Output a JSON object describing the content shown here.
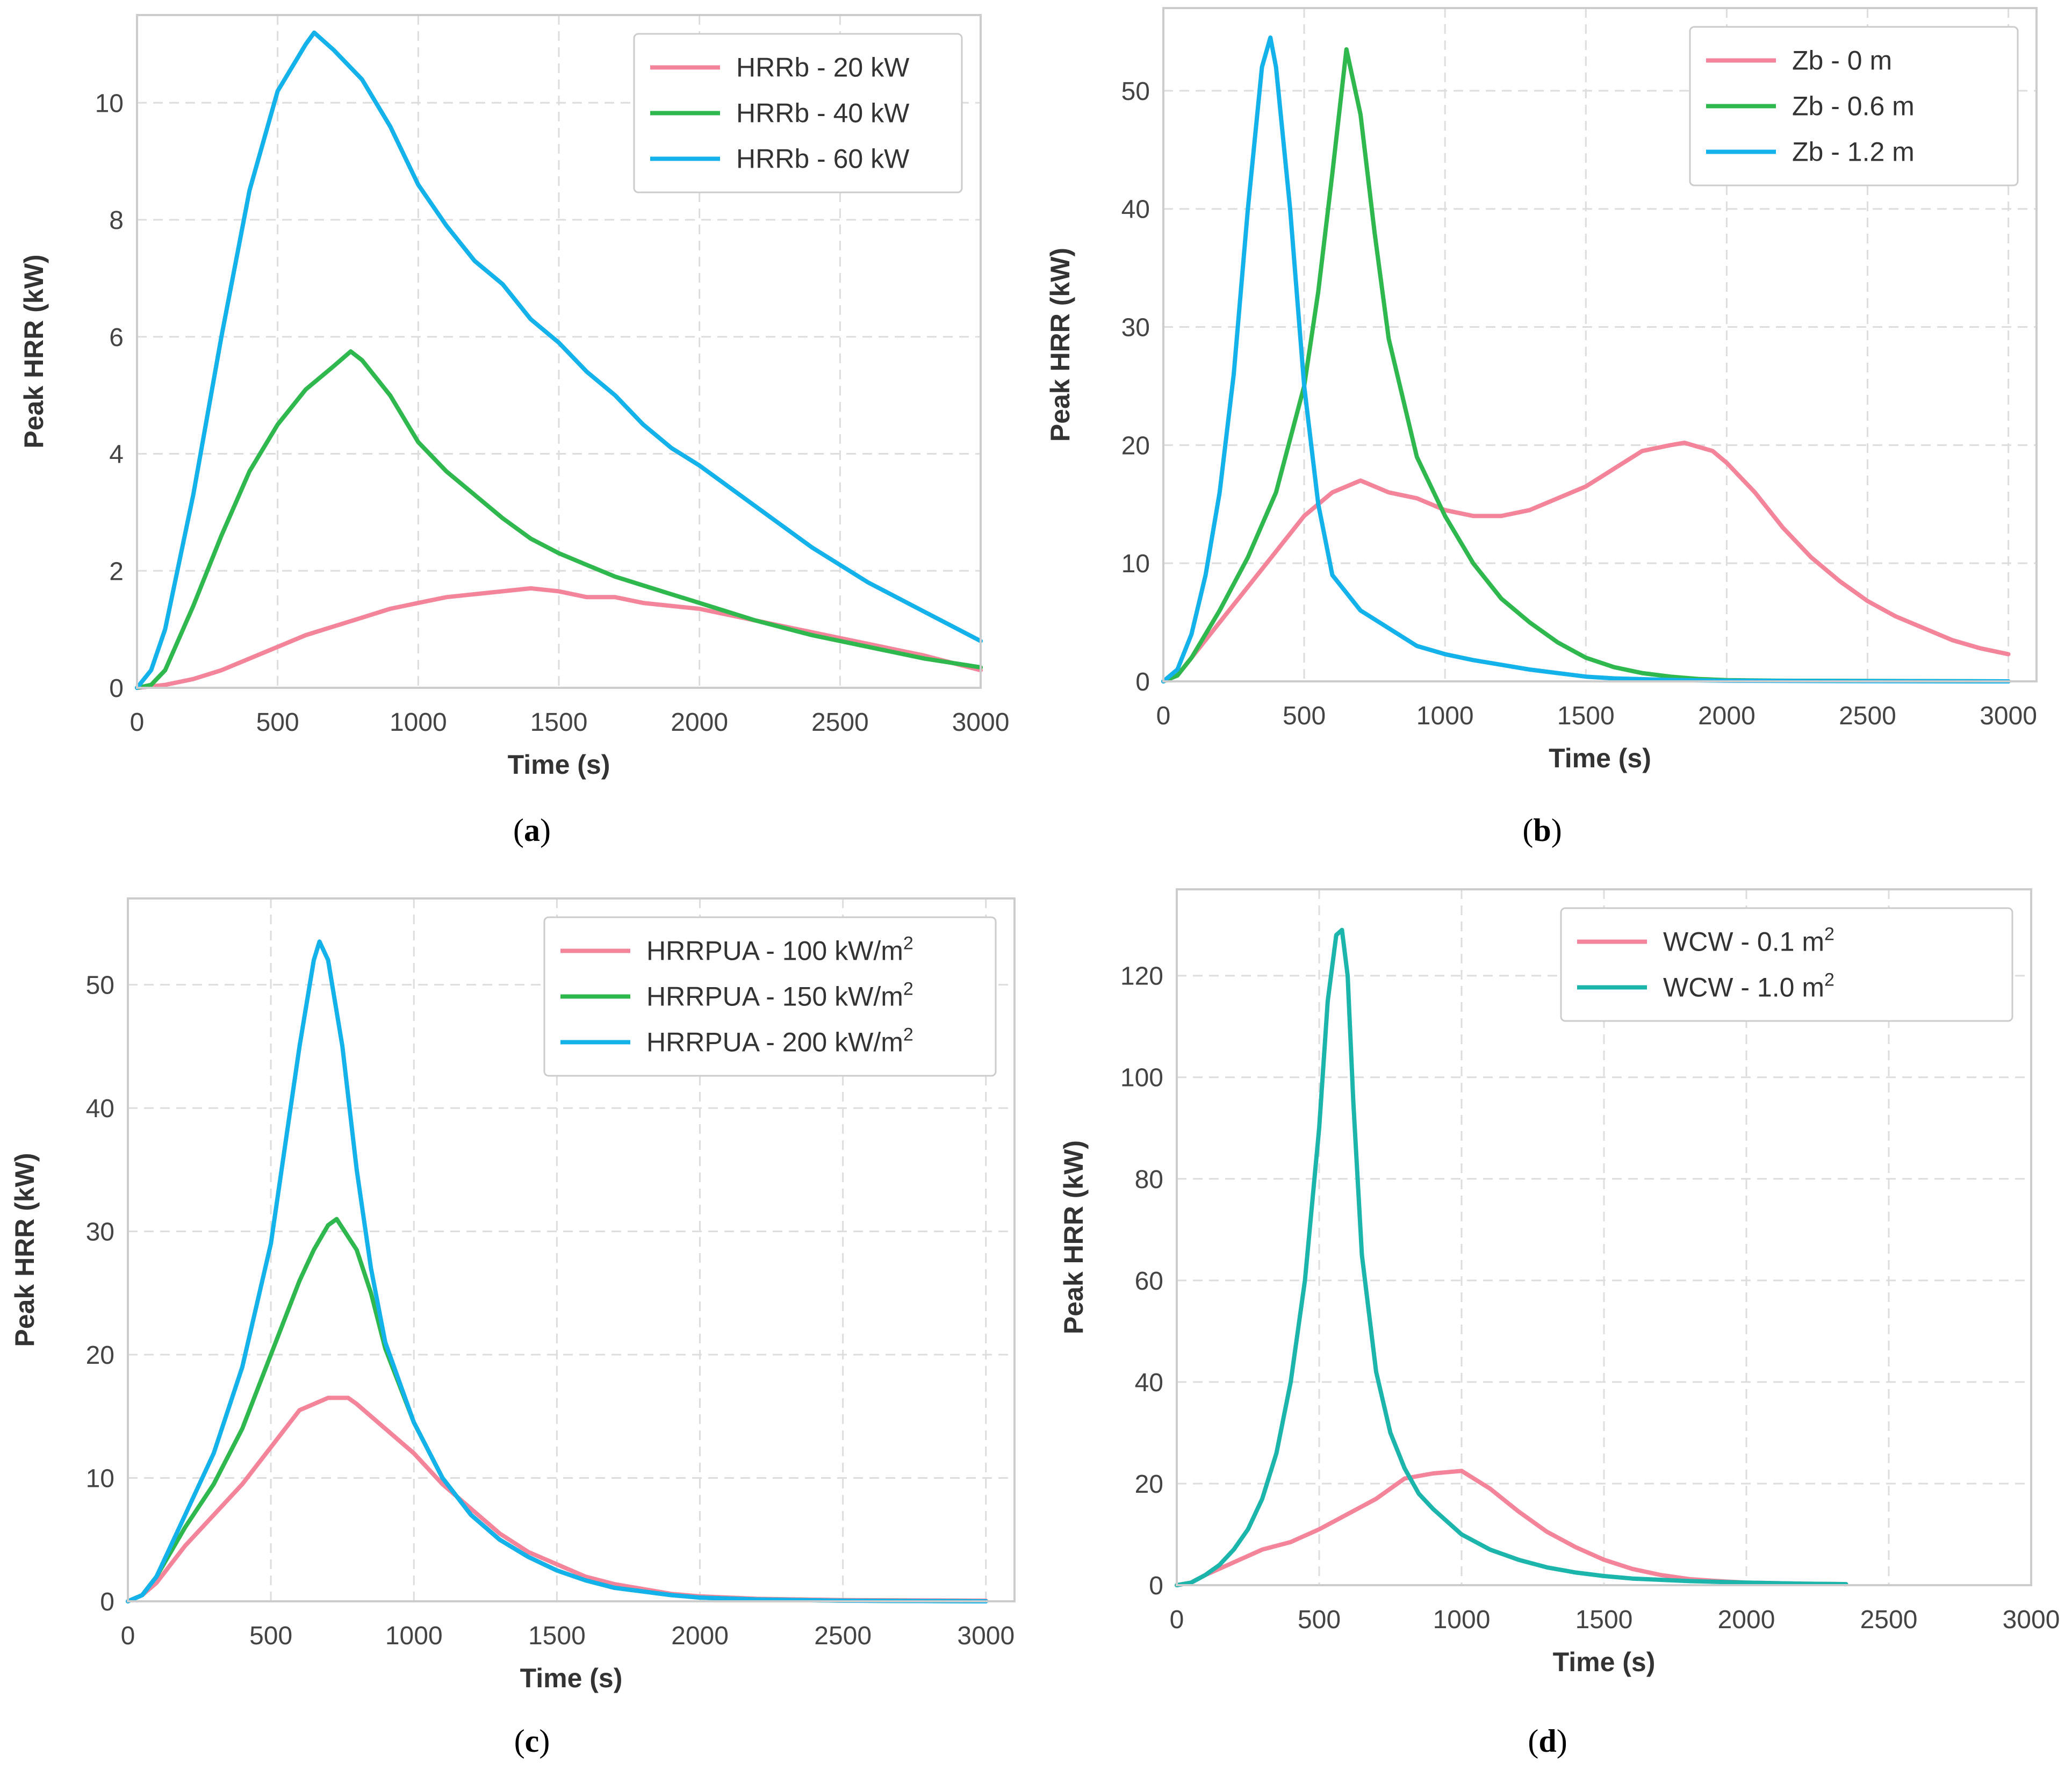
{
  "chart_data": [
    {
      "type": "line",
      "panel_label": "a",
      "xlabel": "Time (s)",
      "ylabel": "Peak HRR (kW)",
      "xlim": [
        0,
        3000
      ],
      "ylim": [
        0,
        11.5
      ],
      "xticks": [
        0,
        500,
        1000,
        1500,
        2000,
        2500,
        3000
      ],
      "yticks": [
        0,
        2,
        4,
        6,
        8,
        10
      ],
      "grid": true,
      "legend_position": "top-right",
      "series": [
        {
          "name": "HRRb - 20 kW",
          "label": "HRRb - 20 kW",
          "color": "#f4849a",
          "x": [
            0,
            100,
            200,
            300,
            400,
            500,
            600,
            700,
            800,
            900,
            1000,
            1100,
            1200,
            1300,
            1400,
            1500,
            1600,
            1700,
            1800,
            1900,
            2000,
            2200,
            2400,
            2600,
            2800,
            3000
          ],
          "y": [
            0,
            0.05,
            0.15,
            0.3,
            0.5,
            0.7,
            0.9,
            1.05,
            1.2,
            1.35,
            1.45,
            1.55,
            1.6,
            1.65,
            1.7,
            1.65,
            1.55,
            1.55,
            1.45,
            1.4,
            1.35,
            1.15,
            0.95,
            0.75,
            0.55,
            0.3
          ]
        },
        {
          "name": "HRRb - 40 kW",
          "label": "HRRb - 40 kW",
          "color": "#2eb84e",
          "x": [
            0,
            50,
            100,
            200,
            300,
            400,
            500,
            600,
            700,
            760,
            800,
            900,
            1000,
            1100,
            1200,
            1300,
            1400,
            1500,
            1600,
            1700,
            1800,
            1900,
            2000,
            2200,
            2400,
            2600,
            2800,
            3000
          ],
          "y": [
            0,
            0.05,
            0.3,
            1.4,
            2.6,
            3.7,
            4.5,
            5.1,
            5.5,
            5.75,
            5.6,
            5.0,
            4.2,
            3.7,
            3.3,
            2.9,
            2.55,
            2.3,
            2.1,
            1.9,
            1.75,
            1.6,
            1.45,
            1.15,
            0.9,
            0.7,
            0.5,
            0.35
          ]
        },
        {
          "name": "HRRb - 60 kW",
          "label": "HRRb - 60 kW",
          "color": "#14b2ea",
          "x": [
            0,
            50,
            100,
            200,
            300,
            400,
            500,
            600,
            630,
            700,
            800,
            900,
            1000,
            1100,
            1200,
            1300,
            1400,
            1500,
            1600,
            1700,
            1800,
            1900,
            2000,
            2200,
            2400,
            2600,
            2800,
            3000
          ],
          "y": [
            0,
            0.3,
            1.0,
            3.3,
            6.0,
            8.5,
            10.2,
            11.0,
            11.2,
            10.9,
            10.4,
            9.6,
            8.6,
            7.9,
            7.3,
            6.9,
            6.3,
            5.9,
            5.4,
            5.0,
            4.5,
            4.1,
            3.8,
            3.1,
            2.4,
            1.8,
            1.3,
            0.8
          ]
        }
      ]
    },
    {
      "type": "line",
      "panel_label": "b",
      "xlabel": "Time (s)",
      "ylabel": "Peak HRR (kW)",
      "xlim": [
        0,
        3100
      ],
      "ylim": [
        0,
        57
      ],
      "xticks": [
        0,
        500,
        1000,
        1500,
        2000,
        2500,
        3000
      ],
      "yticks": [
        0,
        10,
        20,
        30,
        40,
        50
      ],
      "grid": true,
      "legend_position": "top-right",
      "series": [
        {
          "name": "Zb - 0 m",
          "label": "Zb - 0 m",
          "color": "#f4849a",
          "x": [
            0,
            50,
            100,
            200,
            300,
            400,
            500,
            600,
            700,
            800,
            900,
            1000,
            1100,
            1200,
            1300,
            1400,
            1500,
            1600,
            1700,
            1800,
            1850,
            1950,
            2000,
            2100,
            2200,
            2300,
            2400,
            2500,
            2600,
            2700,
            2800,
            2900,
            3000
          ],
          "y": [
            0,
            0.5,
            2,
            5,
            8,
            11,
            14,
            16,
            17,
            16,
            15.5,
            14.5,
            14,
            14,
            14.5,
            15.5,
            16.5,
            18,
            19.5,
            20,
            20.2,
            19.5,
            18.5,
            16,
            13,
            10.5,
            8.5,
            6.8,
            5.5,
            4.5,
            3.5,
            2.8,
            2.3
          ]
        },
        {
          "name": "Zb - 0.6 m",
          "label": "Zb - 0.6 m",
          "color": "#2eb84e",
          "x": [
            0,
            50,
            100,
            200,
            300,
            400,
            500,
            550,
            600,
            650,
            700,
            750,
            800,
            900,
            1000,
            1100,
            1200,
            1300,
            1400,
            1500,
            1600,
            1700,
            1800,
            1900,
            2000,
            2200,
            2500,
            3000
          ],
          "y": [
            0,
            0.5,
            2,
            6,
            10.5,
            16,
            25,
            33,
            43,
            53.5,
            48,
            38,
            29,
            19,
            14,
            10,
            7,
            5,
            3.3,
            2,
            1.2,
            0.7,
            0.4,
            0.2,
            0.1,
            0.05,
            0.03,
            0
          ]
        },
        {
          "name": "Zb - 1.2 m",
          "label": "Zb - 1.2 m",
          "color": "#14b2ea",
          "x": [
            0,
            50,
            100,
            150,
            200,
            250,
            300,
            350,
            380,
            400,
            450,
            500,
            550,
            600,
            700,
            800,
            900,
            1000,
            1100,
            1200,
            1300,
            1400,
            1500,
            1600,
            1800,
            2000,
            2500,
            3000
          ],
          "y": [
            0,
            1,
            4,
            9,
            16,
            26,
            40,
            52,
            54.5,
            52,
            40,
            25,
            15,
            9,
            6,
            4.5,
            3,
            2.3,
            1.8,
            1.4,
            1,
            0.7,
            0.4,
            0.25,
            0.12,
            0.05,
            0.02,
            0
          ]
        }
      ]
    },
    {
      "type": "line",
      "panel_label": "c",
      "xlabel": "Time (s)",
      "ylabel": "Peak HRR (kW)",
      "xlim": [
        0,
        3100
      ],
      "ylim": [
        0,
        57
      ],
      "xticks": [
        0,
        500,
        1000,
        1500,
        2000,
        2500,
        3000
      ],
      "yticks": [
        0,
        10,
        20,
        30,
        40,
        50
      ],
      "grid": true,
      "legend_position": "top-right",
      "series": [
        {
          "name": "HRRPUA - 100 kW/m2",
          "label_prefix": "HRRPUA - 100 kW/m",
          "label_sup": "2",
          "color": "#f4849a",
          "x": [
            0,
            50,
            100,
            200,
            300,
            400,
            500,
            600,
            700,
            770,
            800,
            900,
            1000,
            1100,
            1200,
            1300,
            1400,
            1500,
            1600,
            1700,
            1800,
            1900,
            2000,
            2200,
            2500,
            3000
          ],
          "y": [
            0,
            0.5,
            1.5,
            4.5,
            7,
            9.5,
            12.5,
            15.5,
            16.5,
            16.5,
            16,
            14,
            12,
            9.5,
            7.5,
            5.5,
            4,
            3,
            2,
            1.4,
            1,
            0.6,
            0.4,
            0.2,
            0.1,
            0.05
          ]
        },
        {
          "name": "HRRPUA - 150 kW/m2",
          "label_prefix": "HRRPUA - 150 kW/m",
          "label_sup": "2",
          "color": "#2eb84e",
          "x": [
            0,
            50,
            100,
            200,
            300,
            400,
            500,
            600,
            650,
            700,
            730,
            800,
            850,
            900,
            1000,
            1100,
            1200,
            1300,
            1400,
            1500,
            1600,
            1700,
            1800,
            1900,
            2000,
            2200,
            2500,
            3000
          ],
          "y": [
            0,
            0.5,
            2,
            6,
            9.5,
            14,
            20,
            26,
            28.5,
            30.5,
            31,
            28.5,
            25,
            20.5,
            14.5,
            10,
            7,
            5,
            3.6,
            2.5,
            1.7,
            1.1,
            0.8,
            0.5,
            0.3,
            0.15,
            0.05,
            0
          ]
        },
        {
          "name": "HRRPUA - 200 kW/m2",
          "label_prefix": "HRRPUA - 200 kW/m",
          "label_sup": "2",
          "color": "#14b2ea",
          "x": [
            0,
            50,
            100,
            200,
            300,
            400,
            500,
            550,
            600,
            650,
            670,
            700,
            750,
            800,
            850,
            900,
            1000,
            1100,
            1200,
            1300,
            1400,
            1500,
            1600,
            1700,
            1800,
            1900,
            2000,
            2200,
            2500,
            3000
          ],
          "y": [
            0,
            0.5,
            2,
            7,
            12,
            19,
            29,
            37,
            45,
            52,
            53.5,
            52,
            45,
            35,
            27,
            21,
            14.5,
            10,
            7,
            5,
            3.6,
            2.5,
            1.7,
            1.1,
            0.8,
            0.5,
            0.3,
            0.15,
            0.05,
            0
          ]
        }
      ]
    },
    {
      "type": "line",
      "panel_label": "d",
      "xlabel": "Time (s)",
      "ylabel": "Peak HRR (kW)",
      "xlim": [
        0,
        3000
      ],
      "ylim": [
        0,
        137
      ],
      "xticks": [
        0,
        500,
        1000,
        1500,
        2000,
        2500,
        3000
      ],
      "yticks": [
        0,
        20,
        40,
        60,
        80,
        100,
        120
      ],
      "grid": true,
      "legend_position": "top-right",
      "series": [
        {
          "name": "WCW - 0.1 m2",
          "label_prefix": "WCW - 0.1 m",
          "label_sup": "2",
          "color": "#f4849a",
          "x": [
            0,
            50,
            100,
            200,
            300,
            400,
            500,
            600,
            700,
            800,
            900,
            1000,
            1100,
            1200,
            1300,
            1400,
            1500,
            1600,
            1700,
            1800,
            1900,
            2000,
            2200,
            2350
          ],
          "y": [
            0,
            0.5,
            2,
            4.5,
            7,
            8.5,
            11,
            14,
            17,
            21,
            22,
            22.5,
            19,
            14.5,
            10.5,
            7.5,
            5,
            3.2,
            2,
            1.2,
            0.8,
            0.5,
            0.3,
            0.2
          ]
        },
        {
          "name": "WCW - 1.0 m2",
          "label_prefix": "WCW - 1.0 m",
          "label_sup": "2",
          "color": "#1bb5ac",
          "x": [
            0,
            50,
            100,
            150,
            200,
            250,
            300,
            350,
            400,
            450,
            500,
            530,
            560,
            580,
            600,
            620,
            650,
            700,
            750,
            800,
            850,
            900,
            1000,
            1100,
            1200,
            1300,
            1400,
            1500,
            1600,
            1800,
            2000,
            2200,
            2350
          ],
          "y": [
            0,
            0.5,
            2,
            4,
            7,
            11,
            17,
            26,
            40,
            60,
            90,
            115,
            128,
            129,
            120,
            95,
            65,
            42,
            30,
            23,
            18,
            15,
            10,
            7,
            5,
            3.5,
            2.5,
            1.8,
            1.3,
            0.8,
            0.5,
            0.3,
            0.2
          ]
        }
      ]
    }
  ]
}
